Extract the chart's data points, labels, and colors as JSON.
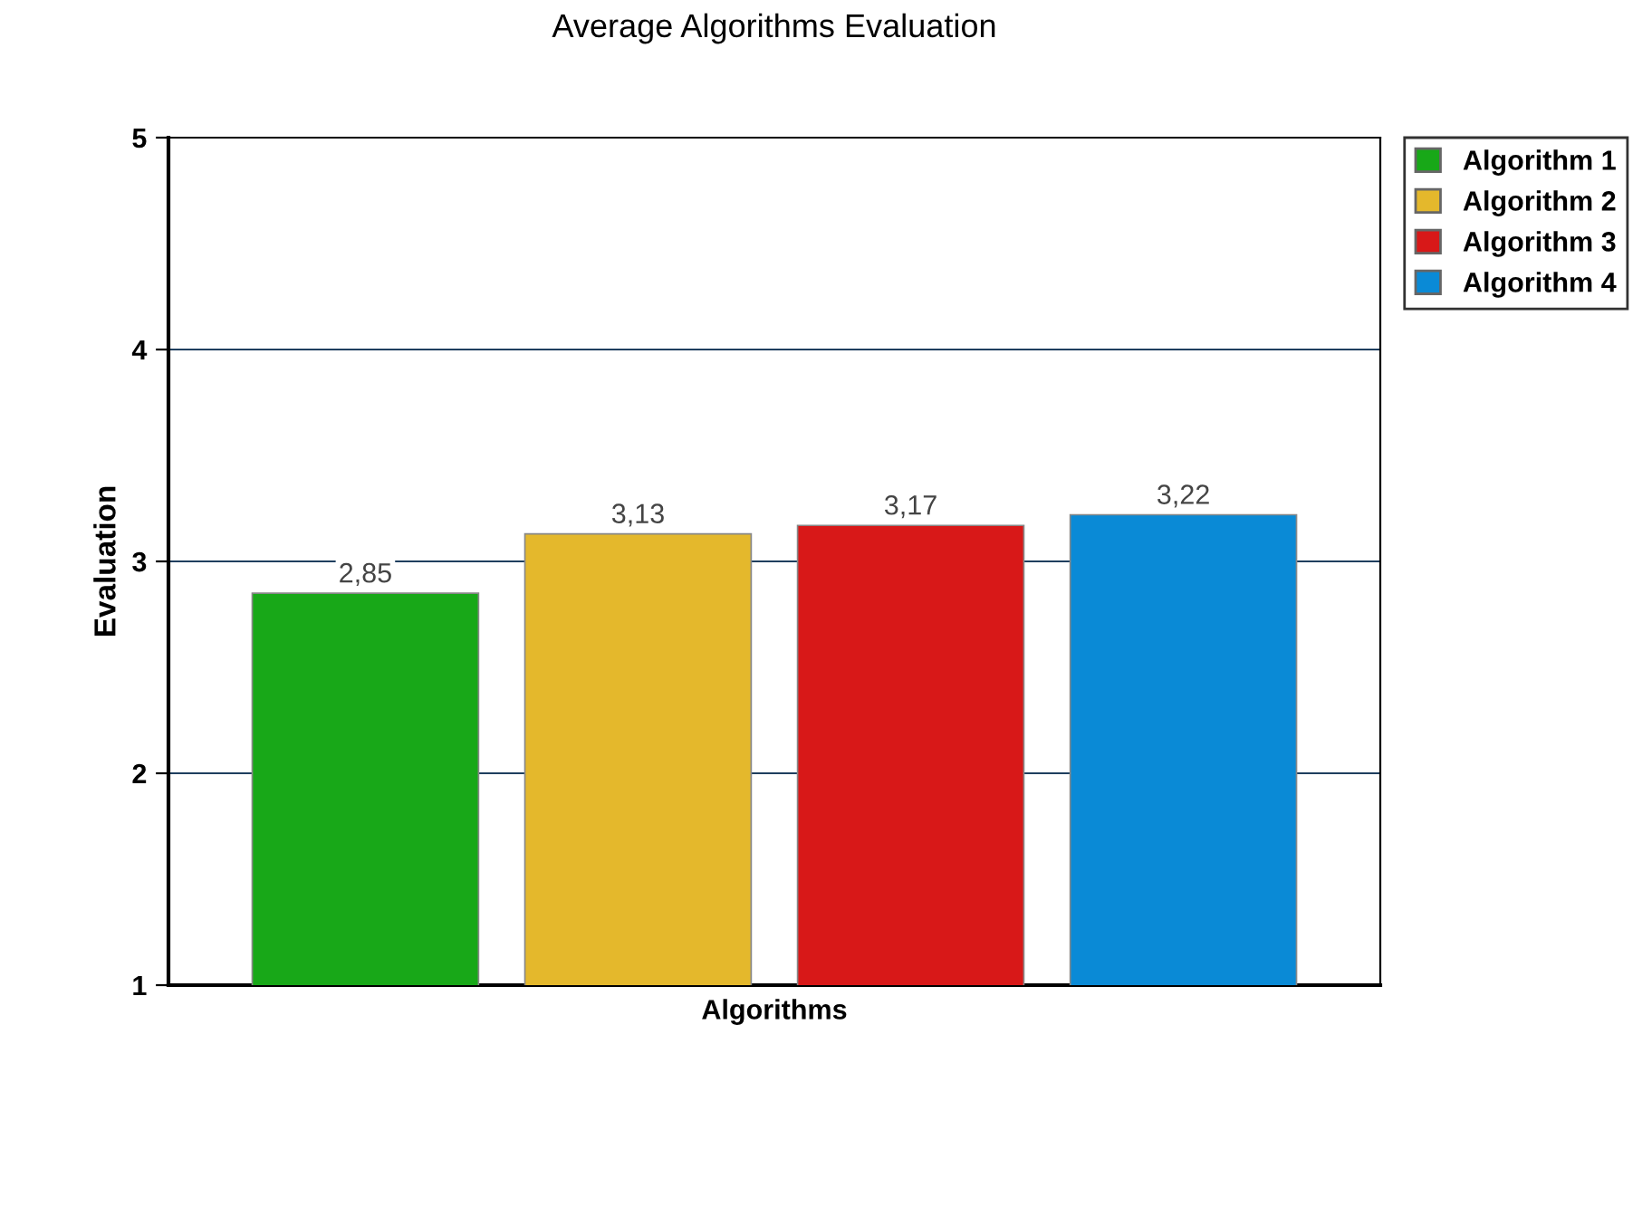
{
  "chart_data": {
    "type": "bar",
    "title": "Average Algorithms Evaluation",
    "xlabel": "Algorithms",
    "ylabel": "Evaluation",
    "categories": [
      null
    ],
    "series": [
      {
        "name": "Algorithm 1",
        "color": "#18a818",
        "values": [
          2.85
        ],
        "value_labels": [
          "2,85"
        ]
      },
      {
        "name": "Algorithm 2",
        "color": "#e4b82c",
        "values": [
          3.13
        ],
        "value_labels": [
          "3,13"
        ]
      },
      {
        "name": "Algorithm 3",
        "color": "#d81818",
        "values": [
          3.17
        ],
        "value_labels": [
          "3,17"
        ]
      },
      {
        "name": "Algorithm 4",
        "color": "#0a8ad6",
        "values": [
          3.22
        ],
        "value_labels": [
          "3,22"
        ]
      }
    ],
    "ylim": [
      1,
      5
    ],
    "yticks": [
      1,
      2,
      3,
      4,
      5
    ],
    "grid": "y",
    "legend": "top right"
  }
}
